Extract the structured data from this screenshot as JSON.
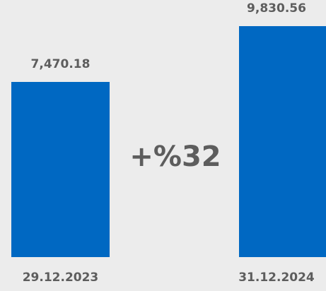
{
  "chart_data": {
    "type": "bar",
    "categories": [
      "29.12.2023",
      "31.12.2024"
    ],
    "values": [
      7470.18,
      9830.56
    ],
    "value_labels": [
      "7,470.18",
      "9,830.56"
    ],
    "change_label": "+%32",
    "ylim": [
      0,
      10000
    ],
    "grid": false,
    "colors": {
      "bar": "#0068c2",
      "text": "#5d5d5d",
      "background": "#ececec"
    }
  }
}
